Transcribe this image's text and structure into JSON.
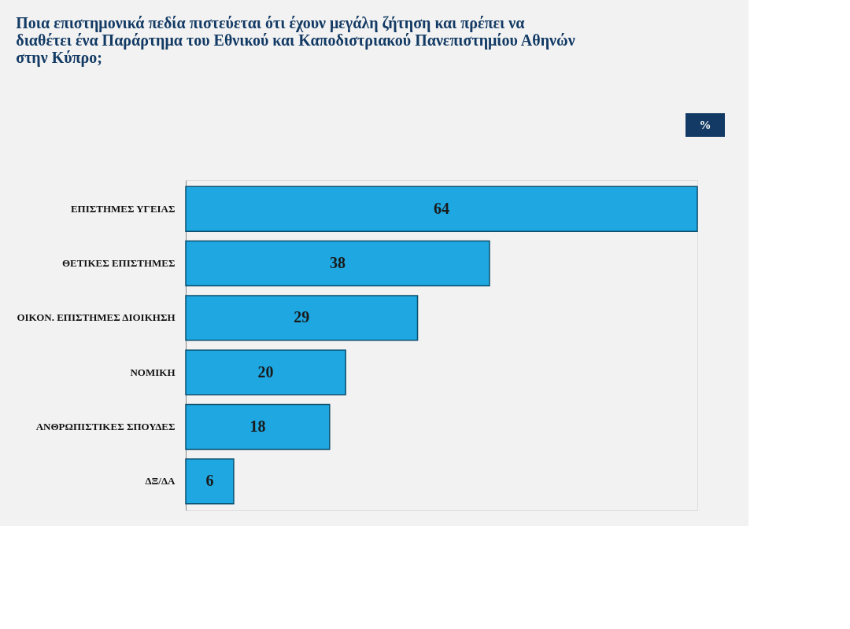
{
  "chart_data": {
    "type": "bar",
    "orientation": "horizontal",
    "title": [
      "Ποια επιστημονικά πεδία πιστεύεται ότι έχουν μεγάλη ζήτηση και πρέπει να",
      "διαθέτει ένα Παράρτημα του Εθνικού και Καποδιστριακού Πανεπιστημίου Αθηνών",
      "στην Κύπρο;"
    ],
    "categories": [
      "ΕΠΙΣΤΗΜΕΣ ΥΓΕΙΑΣ",
      "ΘΕΤΙΚΕΣ ΕΠΙΣΤΗΜΕΣ",
      "ΟΙΚΟΝ. ΕΠΙΣΤΗΜΕΣ ΔΙΟΙΚΗΣΗ",
      "ΝΟΜΙΚΗ",
      "ΑΝΘΡΩΠΙΣΤΙΚΕΣ ΣΠΟΥΔΕΣ",
      "ΔΞ/ΔΑ"
    ],
    "values": [
      64,
      38,
      29,
      20,
      18,
      6
    ],
    "color": "#1ea7e1",
    "data_labels": true,
    "annotations": [
      "%"
    ]
  }
}
